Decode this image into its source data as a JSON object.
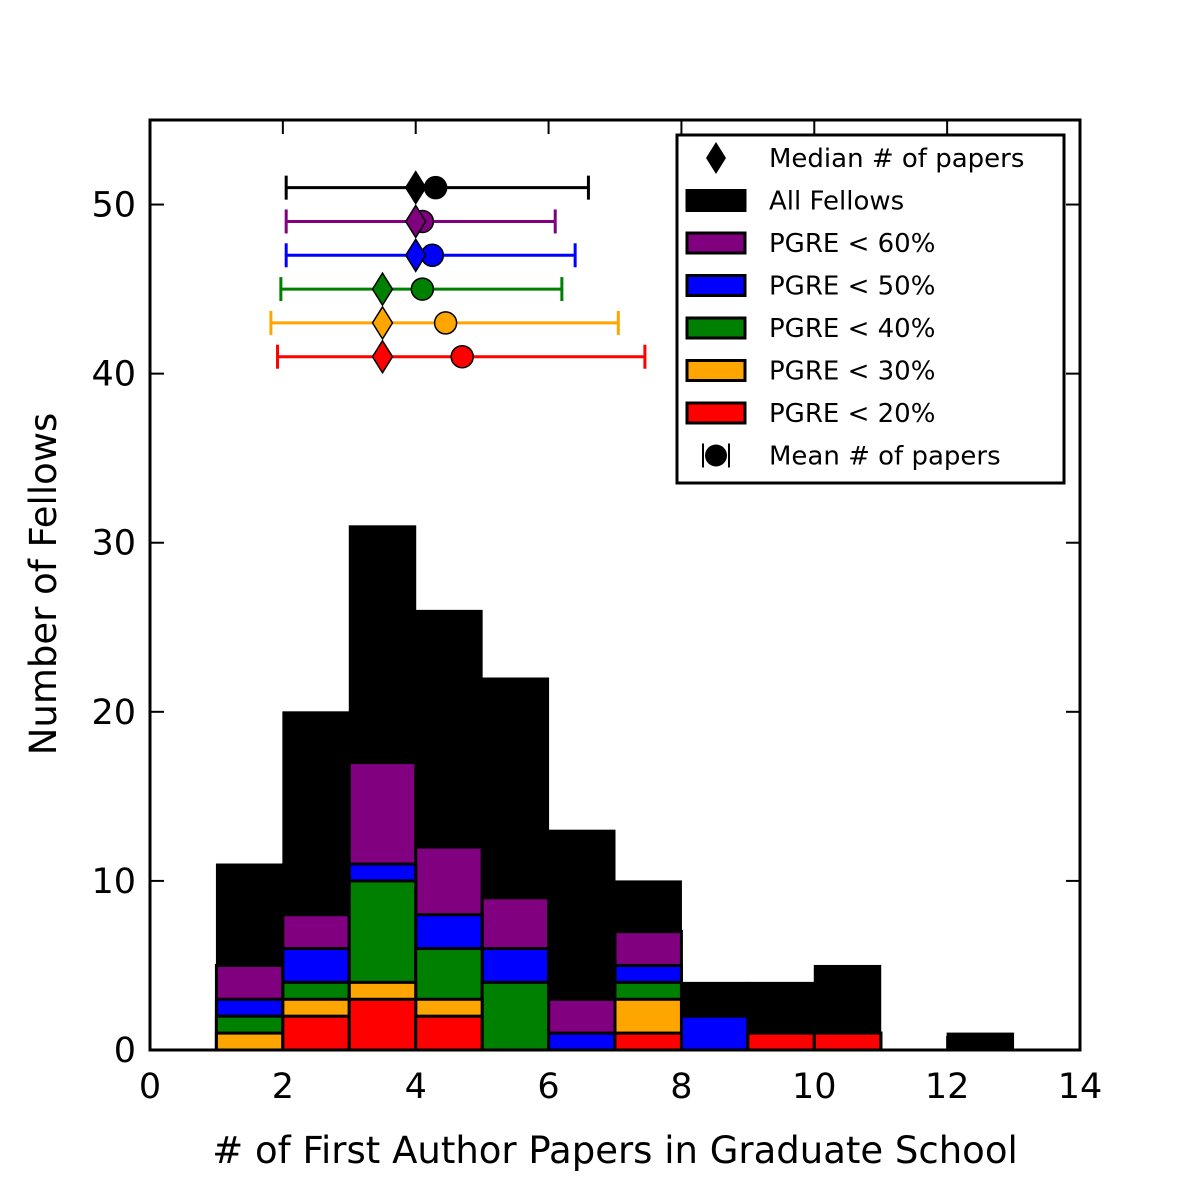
{
  "chart_data": {
    "type": "bar",
    "xlabel": "# of First Author Papers in Graduate School",
    "ylabel": "Number of Fellows",
    "xlim": [
      0,
      14
    ],
    "ylim": [
      0,
      55
    ],
    "xticks": [
      0,
      2,
      4,
      6,
      8,
      10,
      12,
      14
    ],
    "yticks": [
      0,
      10,
      20,
      30,
      40,
      50
    ],
    "bin_edges": [
      1,
      2,
      3,
      4,
      5,
      6,
      7,
      8,
      9,
      10,
      11,
      12,
      13
    ],
    "legend_position": "top-right",
    "series": [
      {
        "name": "All Fellows",
        "color": "#000000",
        "values": [
          11,
          20,
          31,
          26,
          22,
          13,
          10,
          4,
          4,
          5,
          0,
          1
        ]
      },
      {
        "name": "PGRE < 60%",
        "color": "#800080",
        "values": [
          5,
          8,
          17,
          12,
          9,
          3,
          7,
          2,
          1,
          1,
          0,
          0
        ]
      },
      {
        "name": "PGRE < 50%",
        "color": "#0000ff",
        "values": [
          3,
          6,
          11,
          8,
          6,
          1,
          5,
          2,
          1,
          1,
          0,
          0
        ]
      },
      {
        "name": "PGRE < 40%",
        "color": "#008000",
        "values": [
          2,
          4,
          10,
          6,
          4,
          0,
          4,
          0,
          1,
          1,
          0,
          0
        ]
      },
      {
        "name": "PGRE < 30%",
        "color": "#ffa500",
        "values": [
          1,
          3,
          4,
          3,
          0,
          0,
          3,
          0,
          1,
          1,
          0,
          0
        ]
      },
      {
        "name": "PGRE < 20%",
        "color": "#ff0000",
        "values": [
          0,
          2,
          3,
          2,
          0,
          0,
          1,
          0,
          1,
          1,
          0,
          0
        ]
      }
    ],
    "summary_stats": [
      {
        "group": "All Fellows",
        "color": "#000000",
        "y": 51,
        "median": 4.0,
        "mean": 4.3,
        "err_low": 2.05,
        "err_high": 6.6
      },
      {
        "group": "PGRE < 60%",
        "color": "#800080",
        "y": 49,
        "median": 4.0,
        "mean": 4.1,
        "err_low": 2.05,
        "err_high": 6.1
      },
      {
        "group": "PGRE < 50%",
        "color": "#0000ff",
        "y": 47,
        "median": 4.0,
        "mean": 4.25,
        "err_low": 2.05,
        "err_high": 6.4
      },
      {
        "group": "PGRE < 40%",
        "color": "#008000",
        "y": 45,
        "median": 3.5,
        "mean": 4.1,
        "err_low": 1.97,
        "err_high": 6.2
      },
      {
        "group": "PGRE < 30%",
        "color": "#ffa500",
        "y": 43,
        "median": 3.5,
        "mean": 4.45,
        "err_low": 1.82,
        "err_high": 7.05
      },
      {
        "group": "PGRE < 20%",
        "color": "#ff0000",
        "y": 41,
        "median": 3.5,
        "mean": 4.7,
        "err_low": 1.92,
        "err_high": 7.45
      }
    ],
    "legend": [
      {
        "label": "Median # of papers",
        "kind": "diamond",
        "color": "#000000"
      },
      {
        "label": "All Fellows",
        "kind": "patch",
        "color": "#000000"
      },
      {
        "label": "PGRE < 60%",
        "kind": "patch",
        "color": "#800080"
      },
      {
        "label": "PGRE < 50%",
        "kind": "patch",
        "color": "#0000ff"
      },
      {
        "label": "PGRE < 40%",
        "kind": "patch",
        "color": "#008000"
      },
      {
        "label": "PGRE < 30%",
        "kind": "patch",
        "color": "#ffa500"
      },
      {
        "label": "PGRE < 20%",
        "kind": "patch",
        "color": "#ff0000"
      },
      {
        "label": "Mean # of papers",
        "kind": "circle-errorbar",
        "color": "#000000"
      }
    ]
  }
}
